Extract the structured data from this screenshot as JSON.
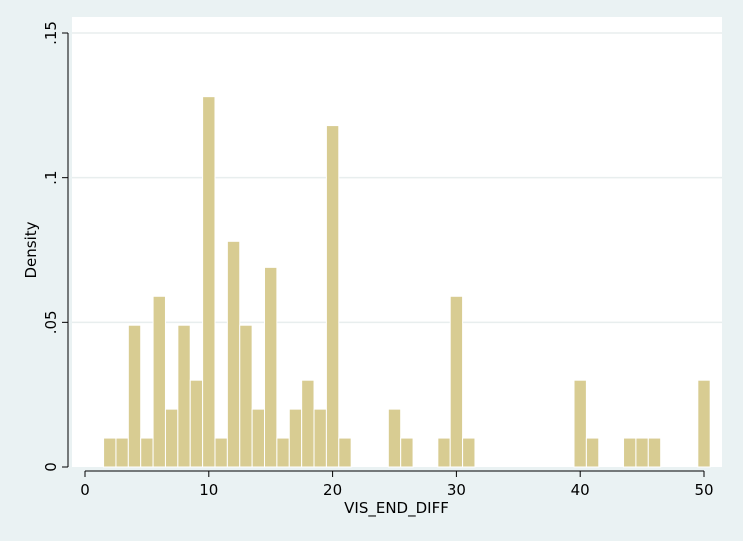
{
  "chart_data": {
    "type": "bar",
    "title": "",
    "xlabel": "VIS_END_DIFF",
    "ylabel": "Density",
    "xlim": [
      -0.5,
      51
    ],
    "ylim": [
      0,
      0.15
    ],
    "x_ticks": [
      0,
      10,
      20,
      30,
      40,
      50
    ],
    "x_tick_labels": [
      "0",
      "10",
      "20",
      "30",
      "40",
      "50"
    ],
    "y_ticks": [
      0,
      0.05,
      0.1,
      0.15
    ],
    "y_tick_labels": [
      "0",
      ".05",
      ".1",
      ".15"
    ],
    "grid": true,
    "bar_width": 1,
    "bar_color": "#d8cc92",
    "bar_edge_color": "#ffffff",
    "bins": [
      {
        "x": 2,
        "value": 0.01
      },
      {
        "x": 3,
        "value": 0.01
      },
      {
        "x": 4,
        "value": 0.049
      },
      {
        "x": 5,
        "value": 0.01
      },
      {
        "x": 6,
        "value": 0.059
      },
      {
        "x": 7,
        "value": 0.02
      },
      {
        "x": 8,
        "value": 0.049
      },
      {
        "x": 9,
        "value": 0.03
      },
      {
        "x": 10,
        "value": 0.128
      },
      {
        "x": 11,
        "value": 0.01
      },
      {
        "x": 12,
        "value": 0.078
      },
      {
        "x": 13,
        "value": 0.049
      },
      {
        "x": 14,
        "value": 0.02
      },
      {
        "x": 15,
        "value": 0.069
      },
      {
        "x": 16,
        "value": 0.01
      },
      {
        "x": 17,
        "value": 0.02
      },
      {
        "x": 18,
        "value": 0.03
      },
      {
        "x": 19,
        "value": 0.02
      },
      {
        "x": 20,
        "value": 0.118
      },
      {
        "x": 21,
        "value": 0.01
      },
      {
        "x": 25,
        "value": 0.02
      },
      {
        "x": 26,
        "value": 0.01
      },
      {
        "x": 29,
        "value": 0.01
      },
      {
        "x": 30,
        "value": 0.059
      },
      {
        "x": 31,
        "value": 0.01
      },
      {
        "x": 40,
        "value": 0.03
      },
      {
        "x": 41,
        "value": 0.01
      },
      {
        "x": 44,
        "value": 0.01
      },
      {
        "x": 45,
        "value": 0.01
      },
      {
        "x": 46,
        "value": 0.01
      },
      {
        "x": 50,
        "value": 0.03
      }
    ]
  },
  "colors": {
    "page_background": "#eaf2f3",
    "plot_background": "#ffffff",
    "grid": "#e8eeee",
    "axis": "#000000"
  }
}
